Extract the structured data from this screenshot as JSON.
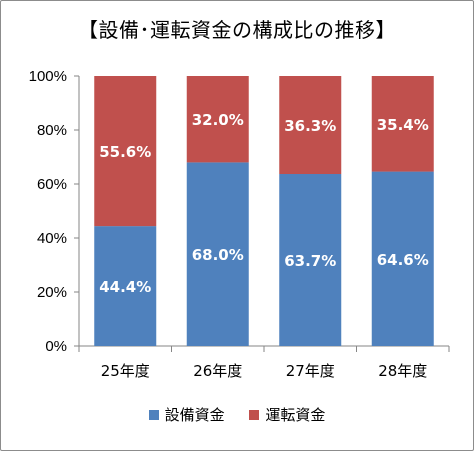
{
  "chart_data": {
    "type": "bar",
    "stacked": true,
    "percent": true,
    "title": "【設備･運転資金の構成比の推移】",
    "categories": [
      "25年度",
      "26年度",
      "27年度",
      "28年度"
    ],
    "series": [
      {
        "name": "設備資金",
        "color": "#4f81bd",
        "values": [
          44.4,
          68.0,
          63.7,
          64.6
        ],
        "labels": [
          "44.4%",
          "68.0%",
          "63.7%",
          "64.6%"
        ]
      },
      {
        "name": "運転資金",
        "color": "#c0504d",
        "values": [
          55.6,
          32.0,
          36.3,
          35.4
        ],
        "labels": [
          "55.6%",
          "32.0%",
          "36.3%",
          "35.4%"
        ]
      }
    ],
    "ylim": [
      0,
      100
    ],
    "yticks": [
      "0%",
      "20%",
      "40%",
      "60%",
      "80%",
      "100%"
    ],
    "grid": false,
    "legend": "bottom"
  }
}
